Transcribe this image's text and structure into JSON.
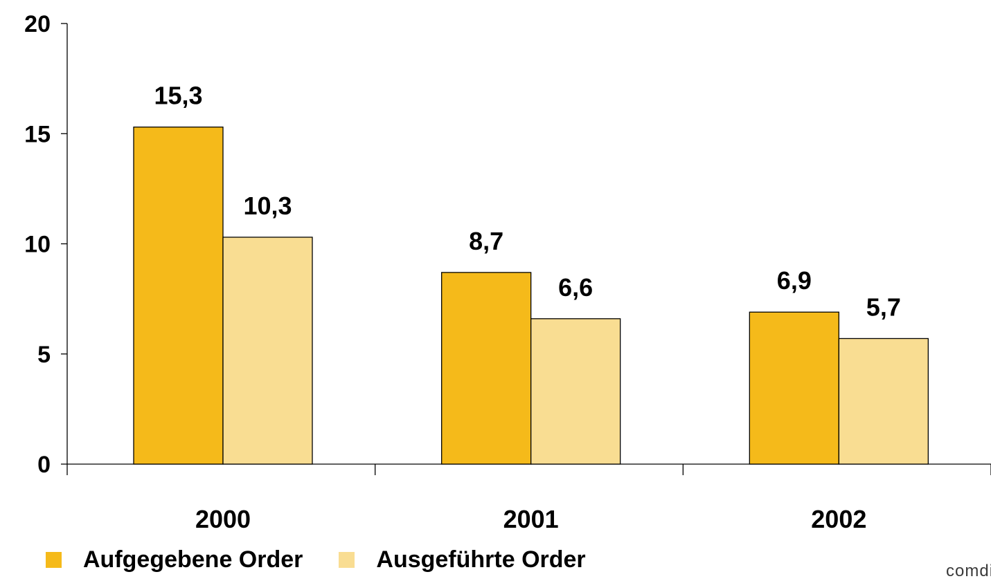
{
  "chart_data": {
    "type": "bar",
    "categories": [
      "2000",
      "2001",
      "2002"
    ],
    "series": [
      {
        "name": "Aufgegebene Order",
        "values": [
          15.3,
          8.7,
          6.9
        ],
        "labels": [
          "15,3",
          "8,7",
          "6,9"
        ],
        "color": "#F5BA1A"
      },
      {
        "name": "Ausgeführte Order",
        "values": [
          10.3,
          6.6,
          5.7
        ],
        "labels": [
          "10,3",
          "6,6",
          "5,7"
        ],
        "color": "#F9DD92"
      }
    ],
    "yticks": [
      0,
      5,
      10,
      15,
      20
    ],
    "ylim": [
      0,
      20
    ],
    "grid": false,
    "legend_position": "bottom-left"
  },
  "logo_text": "comdi"
}
